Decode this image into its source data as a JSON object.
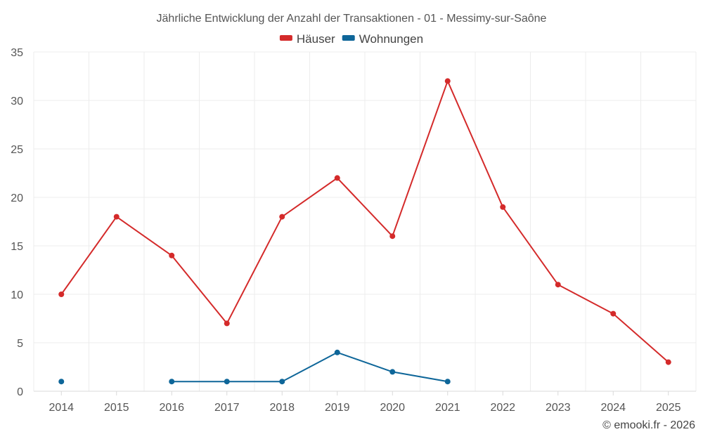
{
  "chart_data": {
    "type": "line",
    "title": "Jährliche Entwicklung der Anzahl der Transaktionen - 01 - Messimy-sur-Saône",
    "categories": [
      "2014",
      "2015",
      "2016",
      "2017",
      "2018",
      "2019",
      "2020",
      "2021",
      "2022",
      "2023",
      "2024",
      "2025"
    ],
    "series": [
      {
        "name": "Häuser",
        "color": "#d42a2a",
        "values": [
          10,
          18,
          14,
          7,
          18,
          22,
          16,
          32,
          19,
          11,
          8,
          3
        ]
      },
      {
        "name": "Wohnungen",
        "color": "#0e6699",
        "values": [
          1,
          null,
          1,
          1,
          1,
          4,
          2,
          1,
          null,
          null,
          null,
          null
        ]
      }
    ],
    "ylim": [
      0,
      35
    ],
    "yticks": [
      0,
      5,
      10,
      15,
      20,
      25,
      30,
      35
    ],
    "grid": true,
    "legend_position": "top-center",
    "xlabel": "",
    "ylabel": ""
  },
  "credit": "© emooki.fr - 2026"
}
